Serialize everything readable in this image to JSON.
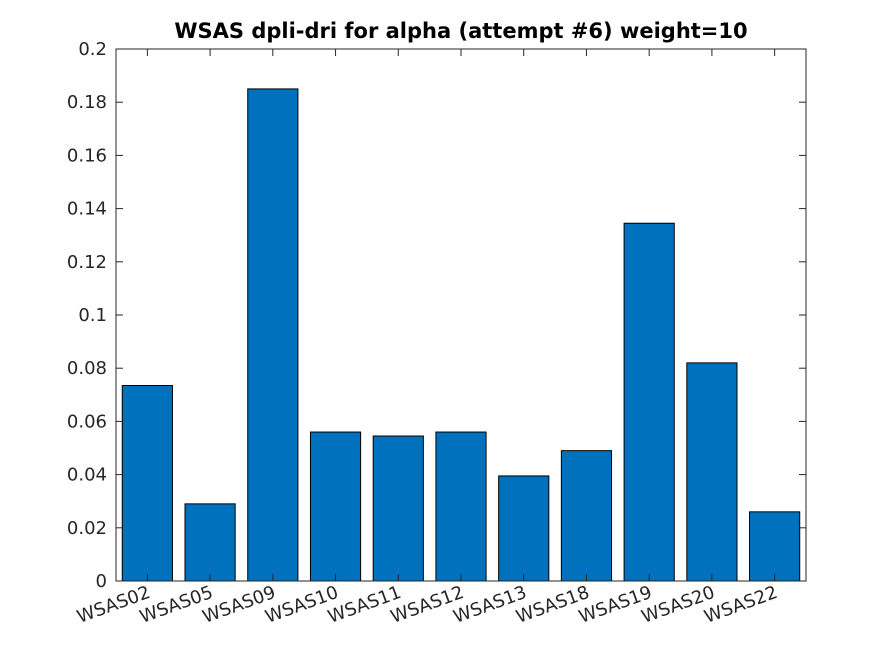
{
  "chart_data": {
    "type": "bar",
    "title": "WSAS dpli-dri for alpha (attempt #6) weight=10",
    "xlabel": "",
    "ylabel": "",
    "categories": [
      "WSAS02",
      "WSAS05",
      "WSAS09",
      "WSAS10",
      "WSAS11",
      "WSAS12",
      "WSAS13",
      "WSAS18",
      "WSAS19",
      "WSAS20",
      "WSAS22"
    ],
    "values": [
      0.0735,
      0.029,
      0.185,
      0.056,
      0.0545,
      0.056,
      0.0395,
      0.049,
      0.1345,
      0.082,
      0.026
    ],
    "ylim": [
      0,
      0.2
    ],
    "yticks": [
      0,
      0.02,
      0.04,
      0.06,
      0.08,
      0.1,
      0.12,
      0.14,
      0.16,
      0.18,
      0.2
    ],
    "ytick_labels": [
      "0",
      "0.02",
      "0.04",
      "0.06",
      "0.08",
      "0.1",
      "0.12",
      "0.14",
      "0.16",
      "0.18",
      "0.2"
    ],
    "bar_color": "#0072BD",
    "grid": false,
    "legend": "none"
  }
}
